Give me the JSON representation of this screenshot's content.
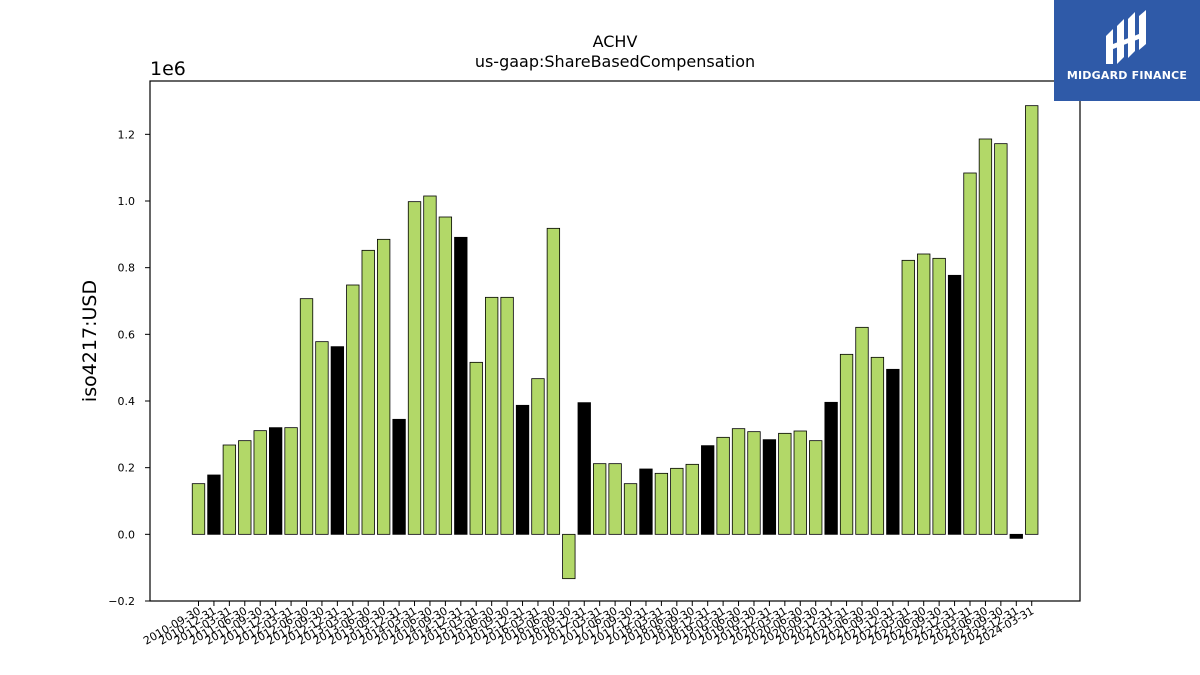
{
  "chart_data": {
    "type": "bar",
    "title": "ACHV",
    "subtitle": "us-gaap:ShareBasedCompensation",
    "ylabel": "iso4217:USD",
    "xlabel": "",
    "scale_label": "1e6",
    "ylim": [
      -0.2,
      1.36
    ],
    "yticks": [
      "−0.2",
      "0.0",
      "0.2",
      "0.4",
      "0.6",
      "0.8",
      "1.0",
      "1.2"
    ],
    "grid": false,
    "colors": {
      "default": "#b2d868",
      "highlight": "#000000"
    },
    "categories": [
      "2010-09-30",
      "2010-12-31",
      "2011-03-31",
      "2011-06-30",
      "2011-09-30",
      "2011-12-31",
      "2012-03-31",
      "2012-06-30",
      "2012-09-30",
      "2012-12-31",
      "2013-03-31",
      "2013-06-30",
      "2013-09-30",
      "2013-12-31",
      "2014-03-31",
      "2014-06-30",
      "2014-09-30",
      "2014-12-31",
      "2015-03-31",
      "2015-06-30",
      "2015-09-30",
      "2015-12-31",
      "2016-03-31",
      "2016-06-30",
      "2016-09-30",
      "2016-12-31",
      "2017-03-31",
      "2017-06-30",
      "2017-09-30",
      "2017-12-31",
      "2018-03-31",
      "2018-06-30",
      "2018-09-30",
      "2018-12-31",
      "2019-03-31",
      "2019-06-30",
      "2019-09-30",
      "2019-12-31",
      "2020-03-31",
      "2020-06-30",
      "2020-09-30",
      "2020-12-31",
      "2021-03-31",
      "2021-06-30",
      "2021-09-30",
      "2021-12-31",
      "2022-03-31",
      "2022-06-30",
      "2022-09-30",
      "2022-12-31",
      "2023-03-31",
      "2023-06-30",
      "2023-09-30",
      "2023-12-31",
      "2024-03-31"
    ],
    "values": [
      0.152,
      0.178,
      0.268,
      0.281,
      0.311,
      0.32,
      0.32,
      0.707,
      0.578,
      0.563,
      0.748,
      0.852,
      0.885,
      0.345,
      0.998,
      1.015,
      0.952,
      0.891,
      0.516,
      0.711,
      0.711,
      0.387,
      0.467,
      0.918,
      -0.133,
      0.395,
      0.212,
      0.212,
      0.152,
      0.196,
      0.183,
      0.198,
      0.21,
      0.266,
      0.291,
      0.317,
      0.308,
      0.284,
      0.303,
      0.31,
      0.281,
      0.396,
      0.54,
      0.621,
      0.531,
      0.495,
      0.822,
      0.841,
      0.828,
      0.777,
      1.084,
      1.186,
      1.172,
      -0.012,
      1.286
    ],
    "highlight": [
      false,
      true,
      false,
      false,
      false,
      true,
      false,
      false,
      false,
      true,
      false,
      false,
      false,
      true,
      false,
      false,
      false,
      true,
      false,
      false,
      false,
      true,
      false,
      false,
      false,
      true,
      false,
      false,
      false,
      true,
      false,
      false,
      false,
      true,
      false,
      false,
      false,
      true,
      false,
      false,
      false,
      true,
      false,
      false,
      false,
      true,
      false,
      false,
      false,
      true,
      false,
      false,
      false,
      true,
      false
    ]
  },
  "logo": {
    "text": "MIDGARD FINANCE",
    "icon": "midgard-logo-icon"
  }
}
